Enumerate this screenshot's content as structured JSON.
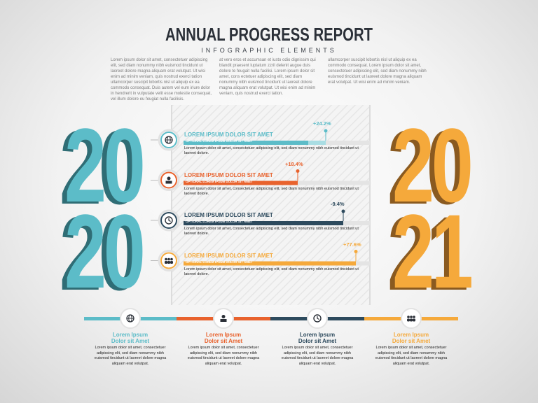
{
  "header": {
    "title": "ANNUAL PROGRESS REPORT",
    "subtitle": "INFOGRAPHIC ELEMENTS"
  },
  "intro": [
    "Lorem ipsum dolor sit amet, consectetuer adipiscing elit, sed diam nonummy nibh euismod tincidunt ut laoreet dolore magna aliquam erat volutpat. Ut wisi enim ad minim veniam, quis nostrud exerci tation ullamcorper suscipit lobortis nisl ut aliquip ex ea commodo consequat. Duis autem vel eum iriure dolor in hendrerit in vulputate velit esse molestie consequat, vel illum dolore eu feugiat nulla facilisis.",
    "at vero eros et accumsan et iusto odio dignissim qui blandit praesent luptatum zzril delenit augue duis dolore te feugait nulla facilisi. Lorem ipsum dolor sit amet, cons ectetuer adipiscing elit, sed diam nonummy nibh euismod tincidunt ut laoreet dolore magna aliquam erat volutpat. Ut wisi enim ad minim veniam, quis nostrud exerci tation.",
    "ullamcorper suscipit lobortis nisl ut aliquip ex ea commodo consequat. Lorem ipsum dolor sit amet, consectetuer adipiscing elit, sed diam nonummy nibh euismod tincidunt ut laoreet dolore magna aliquam erat volutpat. Ut wisi enim ad minim veniam."
  ],
  "years": {
    "left": [
      "20",
      "20"
    ],
    "right": [
      "20",
      "21"
    ]
  },
  "rows": [
    {
      "heading": "LOREM IPSUM DOLOR SIT AMET",
      "subheading": "OPTIONAL LOREM IPSUM DOLOR SIT AMET",
      "change": "+24.2%",
      "text": "Lorem ipsum dolor sit amet, consectetuer adipiscing elit, sed diam nonummy nibh euismod tincidunt ut laoreet dolore."
    },
    {
      "heading": "LOREM IPSUM DOLOR SIT AMET",
      "subheading": "OPTIONAL LOREM IPSUM DOLOR SIT AMET",
      "change": "+18.4%",
      "text": "Lorem ipsum dolor sit amet, consectetuer adipiscing elit, sed diam nonummy nibh euismod tincidunt ut laoreet dolore."
    },
    {
      "heading": "LOREM IPSUM DOLOR SIT AMET",
      "subheading": "OPTIONAL LOREM IPSUM DOLOR SIT AMET",
      "change": "-9.4%",
      "text": "Lorem ipsum dolor sit amet, consectetuer adipiscing elit, sed diam nonummy nibh euismod tincidunt ut laoreet dolore."
    },
    {
      "heading": "LOREM IPSUM DOLOR SIT AMET",
      "subheading": "OPTIONAL LOREM IPSUM DOLOR SIT AMET",
      "change": "+77.6%",
      "text": "Lorem ipsum dolor sit amet, consectetuer adipiscing elit, sed diam nonummy nibh euismod tincidunt ut laoreet dolore."
    }
  ],
  "timeline": [
    {
      "title": "Lorem Ipsum",
      "subtitle": "Dolor sit Amet",
      "text": "Lorem ipsum dolor sit amet, consectetuer adipiscing elit, sed diam nonummy nibh euismod tincidunt ut laoreet dolore magna aliquam erat volutpat."
    },
    {
      "title": "Lorem Ipsum",
      "subtitle": "Dolor sit Amet",
      "text": "Lorem ipsum dolor sit amet, consectetuer adipiscing elit, sed diam nonummy nibh euismod tincidunt ut laoreet dolore magna aliquam erat volutpat."
    },
    {
      "title": "Lorem Ipsum",
      "subtitle": "Dolor sit Amet",
      "text": "Lorem ipsum dolor sit amet, consectetuer adipiscing elit, sed diam nonummy nibh euismod tincidunt ut laoreet dolore magna aliquam erat volutpat."
    },
    {
      "title": "Lorem Ipsum",
      "subtitle": "Dolor sit Amet",
      "text": "Lorem ipsum dolor sit amet, consectetuer adipiscing elit, sed diam nonummy nibh euismod tincidunt ut laoreet dolore magna aliquam erat volutpat."
    }
  ]
}
